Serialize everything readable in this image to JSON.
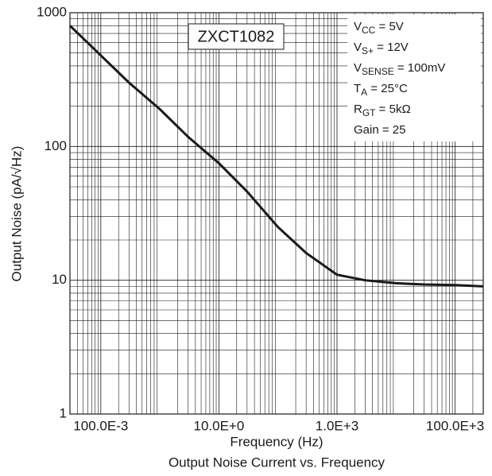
{
  "chart_data": {
    "type": "line",
    "title": "Output Noise Current vs. Frequency",
    "x_label": "Frequency (Hz)",
    "y_label": "Output Noise (pA/√Hz)",
    "x_scale": "log",
    "y_scale": "log",
    "grid": true,
    "minor_grid": true,
    "xlim": [
      0.03,
      300000
    ],
    "ylim": [
      1,
      1000
    ],
    "xticks": [
      {
        "value": 0.1,
        "label": "100.0E-3"
      },
      {
        "value": 10,
        "label": "10.0E+0"
      },
      {
        "value": 1000,
        "label": "1.0E+3"
      },
      {
        "value": 100000,
        "label": "100.0E+3"
      }
    ],
    "yticks": [
      1,
      10,
      100,
      1000
    ],
    "series": [
      {
        "name": "ZXCT1082",
        "color": "#1a1a1a",
        "x": [
          0.03,
          0.1,
          0.3,
          1,
          3,
          10,
          30,
          100,
          300,
          1000,
          3000,
          10000,
          30000,
          100000,
          300000
        ],
        "values": [
          800,
          480,
          300,
          190,
          118,
          75,
          46,
          25,
          16,
          11,
          10,
          9.5,
          9.3,
          9.2,
          9
        ]
      }
    ],
    "conditions": [
      {
        "main": "V",
        "sub": "CC",
        "rest": " = 5V"
      },
      {
        "main": "V",
        "sub": "S+",
        "rest": " = 12V"
      },
      {
        "main": "V",
        "sub": "SENSE",
        "rest": " = 100mV"
      },
      {
        "main": "T",
        "sub": "A",
        "rest": " = 25°C"
      },
      {
        "main": "R",
        "sub": "GT",
        "rest": " = 5kΩ"
      },
      {
        "main": "Gain = 25",
        "sub": "",
        "rest": ""
      }
    ]
  }
}
